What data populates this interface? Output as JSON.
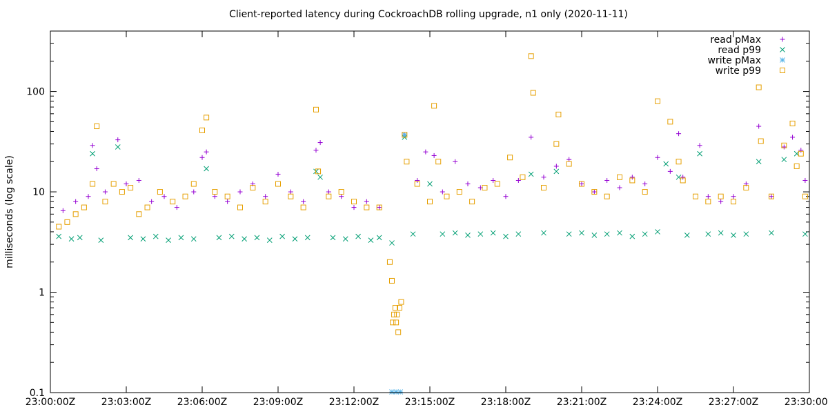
{
  "chart_data": {
    "type": "scatter",
    "title": "Client-reported latency during CockroachDB rolling upgrade, n1 only (2020-11-11)",
    "xlabel": "",
    "ylabel": "milliseconds (log scale)",
    "x_range": [
      "23:00:00Z",
      "23:30:00Z"
    ],
    "x_ticks": [
      "23:00:00Z",
      "23:03:00Z",
      "23:06:00Z",
      "23:09:00Z",
      "23:12:00Z",
      "23:15:00Z",
      "23:18:00Z",
      "23:21:00Z",
      "23:24:00Z",
      "23:27:00Z",
      "23:30:00Z"
    ],
    "ylim": [
      0.1,
      400
    ],
    "y_scale": "log",
    "y_ticks": [
      "0.1",
      "1",
      "10",
      "100"
    ],
    "grid": false,
    "legend_position": "top-right",
    "series": [
      {
        "name": "read pMax",
        "marker": "plus",
        "color": "#9400d3",
        "points": [
          [
            "23:00:30Z",
            6.5
          ],
          [
            "23:01:00Z",
            8
          ],
          [
            "23:01:30Z",
            9
          ],
          [
            "23:01:40Z",
            29
          ],
          [
            "23:01:50Z",
            17
          ],
          [
            "23:02:10Z",
            10
          ],
          [
            "23:02:40Z",
            33
          ],
          [
            "23:03:00Z",
            12
          ],
          [
            "23:03:30Z",
            13
          ],
          [
            "23:04:00Z",
            8
          ],
          [
            "23:04:30Z",
            9
          ],
          [
            "23:05:00Z",
            7
          ],
          [
            "23:05:40Z",
            10
          ],
          [
            "23:06:00Z",
            22
          ],
          [
            "23:06:10Z",
            25
          ],
          [
            "23:06:30Z",
            9
          ],
          [
            "23:07:00Z",
            8
          ],
          [
            "23:07:30Z",
            10
          ],
          [
            "23:08:00Z",
            12
          ],
          [
            "23:08:30Z",
            9
          ],
          [
            "23:09:00Z",
            15
          ],
          [
            "23:09:30Z",
            10
          ],
          [
            "23:10:00Z",
            8
          ],
          [
            "23:10:30Z",
            26
          ],
          [
            "23:10:40Z",
            31
          ],
          [
            "23:11:00Z",
            10
          ],
          [
            "23:11:30Z",
            9
          ],
          [
            "23:12:00Z",
            7
          ],
          [
            "23:12:30Z",
            8
          ],
          [
            "23:13:00Z",
            7
          ],
          [
            "23:14:00Z",
            37
          ],
          [
            "23:14:30Z",
            13
          ],
          [
            "23:14:50Z",
            25
          ],
          [
            "23:15:10Z",
            23
          ],
          [
            "23:15:30Z",
            10
          ],
          [
            "23:16:00Z",
            20
          ],
          [
            "23:16:30Z",
            12
          ],
          [
            "23:17:00Z",
            11
          ],
          [
            "23:17:30Z",
            13
          ],
          [
            "23:18:00Z",
            9
          ],
          [
            "23:18:30Z",
            13
          ],
          [
            "23:19:00Z",
            35
          ],
          [
            "23:19:30Z",
            14
          ],
          [
            "23:20:00Z",
            18
          ],
          [
            "23:20:30Z",
            21
          ],
          [
            "23:21:00Z",
            12
          ],
          [
            "23:21:30Z",
            10
          ],
          [
            "23:22:00Z",
            13
          ],
          [
            "23:22:30Z",
            11
          ],
          [
            "23:23:00Z",
            14
          ],
          [
            "23:23:30Z",
            12
          ],
          [
            "23:24:00Z",
            22
          ],
          [
            "23:24:30Z",
            16
          ],
          [
            "23:24:50Z",
            38
          ],
          [
            "23:25:00Z",
            14
          ],
          [
            "23:25:40Z",
            29
          ],
          [
            "23:26:00Z",
            9
          ],
          [
            "23:26:30Z",
            8
          ],
          [
            "23:27:00Z",
            9
          ],
          [
            "23:27:30Z",
            12
          ],
          [
            "23:28:00Z",
            45
          ],
          [
            "23:28:30Z",
            9
          ],
          [
            "23:29:00Z",
            28
          ],
          [
            "23:29:20Z",
            35
          ],
          [
            "23:29:40Z",
            26
          ],
          [
            "23:29:50Z",
            13
          ]
        ]
      },
      {
        "name": "read p99",
        "marker": "cross",
        "color": "#009e73",
        "points": [
          [
            "23:00:20Z",
            3.6
          ],
          [
            "23:00:50Z",
            3.4
          ],
          [
            "23:01:10Z",
            3.5
          ],
          [
            "23:01:40Z",
            24
          ],
          [
            "23:02:00Z",
            3.3
          ],
          [
            "23:02:40Z",
            28
          ],
          [
            "23:03:10Z",
            3.5
          ],
          [
            "23:03:40Z",
            3.4
          ],
          [
            "23:04:10Z",
            3.6
          ],
          [
            "23:04:40Z",
            3.3
          ],
          [
            "23:05:10Z",
            3.5
          ],
          [
            "23:05:40Z",
            3.4
          ],
          [
            "23:06:10Z",
            17
          ],
          [
            "23:06:40Z",
            3.5
          ],
          [
            "23:07:10Z",
            3.6
          ],
          [
            "23:07:40Z",
            3.4
          ],
          [
            "23:08:10Z",
            3.5
          ],
          [
            "23:08:40Z",
            3.3
          ],
          [
            "23:09:10Z",
            3.6
          ],
          [
            "23:09:40Z",
            3.4
          ],
          [
            "23:10:10Z",
            3.5
          ],
          [
            "23:10:30Z",
            16
          ],
          [
            "23:10:40Z",
            14
          ],
          [
            "23:11:10Z",
            3.5
          ],
          [
            "23:11:40Z",
            3.4
          ],
          [
            "23:12:10Z",
            3.6
          ],
          [
            "23:12:40Z",
            3.3
          ],
          [
            "23:13:00Z",
            3.5
          ],
          [
            "23:13:30Z",
            3.1
          ],
          [
            "23:14:00Z",
            35
          ],
          [
            "23:14:20Z",
            3.8
          ],
          [
            "23:15:00Z",
            12
          ],
          [
            "23:15:30Z",
            3.8
          ],
          [
            "23:16:00Z",
            3.9
          ],
          [
            "23:16:30Z",
            3.7
          ],
          [
            "23:17:00Z",
            3.8
          ],
          [
            "23:17:30Z",
            3.9
          ],
          [
            "23:18:00Z",
            3.6
          ],
          [
            "23:18:30Z",
            3.8
          ],
          [
            "23:19:00Z",
            15
          ],
          [
            "23:19:30Z",
            3.9
          ],
          [
            "23:20:00Z",
            16
          ],
          [
            "23:20:30Z",
            3.8
          ],
          [
            "23:21:00Z",
            3.9
          ],
          [
            "23:21:30Z",
            3.7
          ],
          [
            "23:22:00Z",
            3.8
          ],
          [
            "23:22:30Z",
            3.9
          ],
          [
            "23:23:00Z",
            3.6
          ],
          [
            "23:23:30Z",
            3.8
          ],
          [
            "23:24:00Z",
            4.0
          ],
          [
            "23:24:20Z",
            19
          ],
          [
            "23:24:50Z",
            14
          ],
          [
            "23:25:10Z",
            3.7
          ],
          [
            "23:25:40Z",
            24
          ],
          [
            "23:26:00Z",
            3.8
          ],
          [
            "23:26:30Z",
            3.9
          ],
          [
            "23:27:00Z",
            3.7
          ],
          [
            "23:27:30Z",
            3.8
          ],
          [
            "23:28:00Z",
            20
          ],
          [
            "23:28:30Z",
            3.9
          ],
          [
            "23:29:00Z",
            21
          ],
          [
            "23:29:30Z",
            24
          ],
          [
            "23:29:50Z",
            3.8
          ]
        ]
      },
      {
        "name": "write pMax",
        "marker": "star",
        "color": "#56b4e9",
        "points": [
          [
            "23:13:30Z",
            0.1
          ],
          [
            "23:13:40Z",
            0.1
          ],
          [
            "23:13:50Z",
            0.1
          ],
          [
            "23:14:00Z",
            37
          ]
        ]
      },
      {
        "name": "write p99",
        "marker": "square",
        "color": "#e69f00",
        "points": [
          [
            "23:00:20Z",
            4.5
          ],
          [
            "23:00:40Z",
            5
          ],
          [
            "23:01:00Z",
            6
          ],
          [
            "23:01:20Z",
            7
          ],
          [
            "23:01:40Z",
            12
          ],
          [
            "23:01:50Z",
            45
          ],
          [
            "23:02:10Z",
            8
          ],
          [
            "23:02:30Z",
            12
          ],
          [
            "23:02:50Z",
            10
          ],
          [
            "23:03:10Z",
            11
          ],
          [
            "23:03:30Z",
            6
          ],
          [
            "23:03:50Z",
            7
          ],
          [
            "23:04:20Z",
            10
          ],
          [
            "23:04:50Z",
            8
          ],
          [
            "23:05:20Z",
            9
          ],
          [
            "23:05:40Z",
            12
          ],
          [
            "23:06:00Z",
            41
          ],
          [
            "23:06:10Z",
            55
          ],
          [
            "23:06:30Z",
            10
          ],
          [
            "23:07:00Z",
            9
          ],
          [
            "23:07:30Z",
            7
          ],
          [
            "23:08:00Z",
            11
          ],
          [
            "23:08:30Z",
            8
          ],
          [
            "23:09:00Z",
            12
          ],
          [
            "23:09:30Z",
            9
          ],
          [
            "23:10:00Z",
            7
          ],
          [
            "23:10:30Z",
            66
          ],
          [
            "23:10:35Z",
            16
          ],
          [
            "23:11:00Z",
            9
          ],
          [
            "23:11:30Z",
            10
          ],
          [
            "23:12:00Z",
            8
          ],
          [
            "23:12:30Z",
            7
          ],
          [
            "23:13:00Z",
            7
          ],
          [
            "23:13:25Z",
            2.0
          ],
          [
            "23:13:30Z",
            1.3
          ],
          [
            "23:13:32Z",
            0.5
          ],
          [
            "23:13:35Z",
            0.6
          ],
          [
            "23:13:38Z",
            0.7
          ],
          [
            "23:13:40Z",
            0.5
          ],
          [
            "23:13:42Z",
            0.6
          ],
          [
            "23:13:45Z",
            0.4
          ],
          [
            "23:13:48Z",
            0.7
          ],
          [
            "23:13:52Z",
            0.8
          ],
          [
            "23:14:00Z",
            37
          ],
          [
            "23:14:05Z",
            20
          ],
          [
            "23:14:30Z",
            12
          ],
          [
            "23:15:00Z",
            8
          ],
          [
            "23:15:10Z",
            72
          ],
          [
            "23:15:20Z",
            20
          ],
          [
            "23:15:40Z",
            9
          ],
          [
            "23:16:10Z",
            10
          ],
          [
            "23:16:40Z",
            8
          ],
          [
            "23:17:10Z",
            11
          ],
          [
            "23:17:40Z",
            12
          ],
          [
            "23:18:10Z",
            22
          ],
          [
            "23:18:40Z",
            14
          ],
          [
            "23:19:00Z",
            225
          ],
          [
            "23:19:05Z",
            97
          ],
          [
            "23:19:30Z",
            11
          ],
          [
            "23:20:00Z",
            30
          ],
          [
            "23:20:05Z",
            59
          ],
          [
            "23:20:30Z",
            19
          ],
          [
            "23:21:00Z",
            12
          ],
          [
            "23:21:30Z",
            10
          ],
          [
            "23:22:00Z",
            9
          ],
          [
            "23:22:30Z",
            14
          ],
          [
            "23:23:00Z",
            13
          ],
          [
            "23:23:30Z",
            10
          ],
          [
            "23:24:00Z",
            80
          ],
          [
            "23:24:30Z",
            50
          ],
          [
            "23:24:50Z",
            20
          ],
          [
            "23:25:00Z",
            13
          ],
          [
            "23:25:30Z",
            9
          ],
          [
            "23:26:00Z",
            8
          ],
          [
            "23:26:30Z",
            9
          ],
          [
            "23:27:00Z",
            8
          ],
          [
            "23:27:30Z",
            11
          ],
          [
            "23:28:00Z",
            110
          ],
          [
            "23:28:05Z",
            32
          ],
          [
            "23:28:30Z",
            9
          ],
          [
            "23:29:00Z",
            29
          ],
          [
            "23:29:20Z",
            48
          ],
          [
            "23:29:30Z",
            18
          ],
          [
            "23:29:40Z",
            24
          ],
          [
            "23:29:50Z",
            9
          ]
        ]
      }
    ]
  }
}
